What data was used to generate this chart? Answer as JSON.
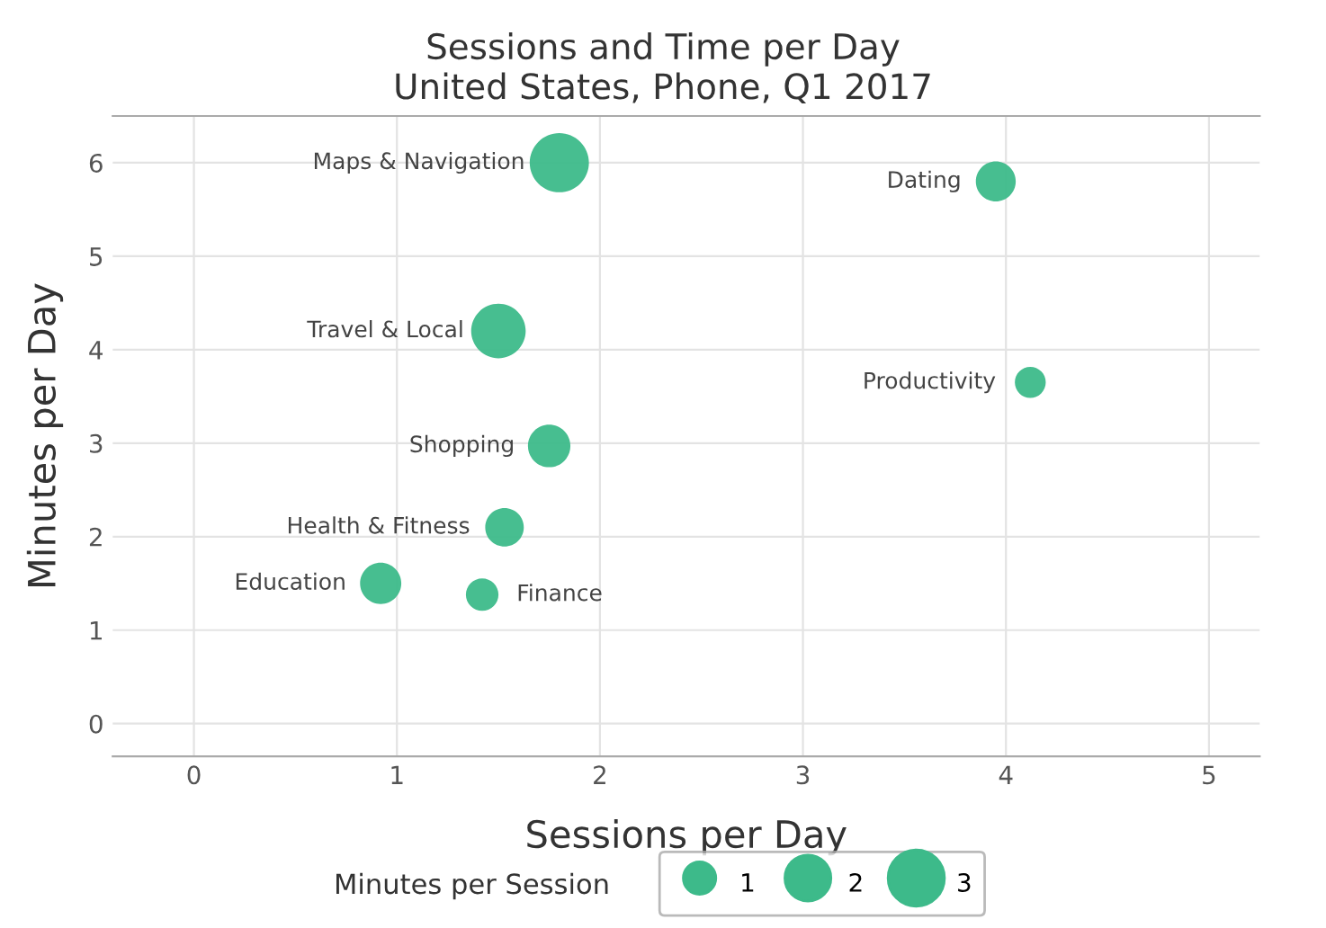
{
  "chart_data": {
    "type": "bubble",
    "title": "Sessions and Time per Day",
    "subtitle": "United States, Phone, Q1 2017",
    "xlabel": "Sessions per Day",
    "ylabel": "Minutes per Day",
    "legend_title": "Minutes per Session",
    "x": [
      1.8,
      3.95,
      1.5,
      4.12,
      1.75,
      1.53,
      0.92,
      1.42
    ],
    "values": [
      6.0,
      5.8,
      4.2,
      3.65,
      2.97,
      2.1,
      1.5,
      1.38
    ],
    "sizes": [
      3.3,
      1.5,
      2.8,
      0.9,
      1.7,
      1.4,
      1.6,
      1.0
    ],
    "size_legend": [
      1,
      2,
      3
    ],
    "color": "#3dba8a",
    "annotations": [
      {
        "text": "Maps & Navigation",
        "x": 1.8,
        "y": 6.0
      },
      {
        "text": "Dating",
        "x": 3.95,
        "y": 5.8
      },
      {
        "text": "Travel & Local",
        "x": 1.5,
        "y": 4.2
      },
      {
        "text": "Productivity",
        "x": 4.12,
        "y": 3.65
      },
      {
        "text": "Shopping",
        "x": 1.75,
        "y": 2.97
      },
      {
        "text": "Health & Fitness",
        "x": 1.53,
        "y": 2.1
      },
      {
        "text": "Education",
        "x": 0.92,
        "y": 1.5
      },
      {
        "text": "Finance",
        "x": 1.42,
        "y": 1.38
      }
    ],
    "xlim": [
      -0.4,
      5.25
    ],
    "ylim": [
      -0.35,
      6.5
    ],
    "xticks": [
      0,
      1,
      2,
      3,
      4,
      5
    ],
    "yticks": [
      0,
      1,
      2,
      3,
      4,
      5,
      6
    ],
    "grid": true
  }
}
